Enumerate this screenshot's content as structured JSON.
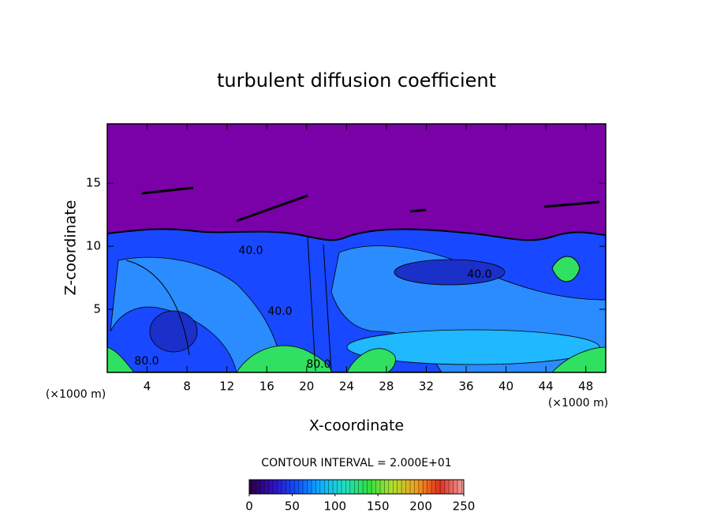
{
  "chart_data": {
    "type": "contour",
    "title": "turbulent diffusion coefficient",
    "x_label": "X-coordinate",
    "y_label": "Z-coordinate",
    "x_unit_label": "(×1000 m)",
    "x_unit_label_right": "(×1000 m)",
    "xlim": [
      0,
      50
    ],
    "xticks": [
      4,
      8,
      12,
      16,
      20,
      24,
      28,
      32,
      36,
      40,
      44,
      48
    ],
    "ylim": [
      0,
      19.7
    ],
    "yticks": [
      5,
      10,
      15
    ],
    "contour_interval_text": "CONTOUR INTERVAL = 2.000E+01",
    "contour_labels": [
      "40.0",
      "40.0",
      "40.0",
      "80.0",
      "80.0"
    ],
    "colorbar": {
      "lim": [
        0,
        250
      ],
      "ticks": [
        0,
        50,
        100,
        150,
        200,
        250
      ],
      "colors": [
        "#2a0040",
        "#3010c0",
        "#1050ff",
        "#10b0ff",
        "#20e0c0",
        "#30e040",
        "#b0e030",
        "#f0a020",
        "#e03020",
        "#f0a0a0"
      ]
    }
  }
}
